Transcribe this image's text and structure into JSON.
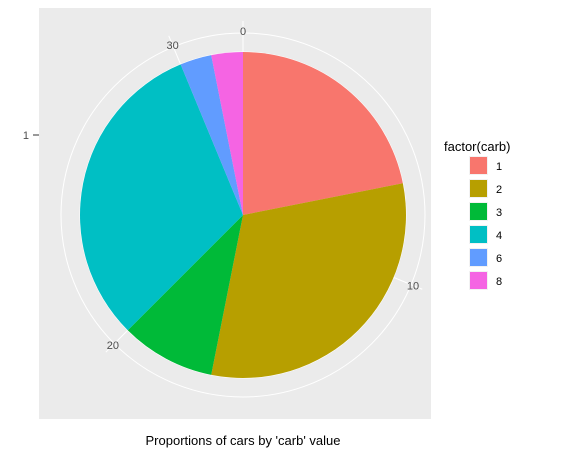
{
  "chart_data": {
    "type": "pie",
    "title": "",
    "xlabel": "Proportions of cars by 'carb' value",
    "y_tick_labels": [
      "1"
    ],
    "theta_ticks": [
      0,
      10,
      20,
      30
    ],
    "theta_range": [
      0,
      32
    ],
    "grid": true,
    "legend": {
      "title": "factor(carb)",
      "position": "right"
    },
    "categories": [
      "1",
      "2",
      "3",
      "4",
      "6",
      "8"
    ],
    "values": [
      7,
      10,
      3,
      10,
      1,
      1
    ],
    "colors": [
      "#F8766D",
      "#B79F00",
      "#00BA38",
      "#00BFC4",
      "#619CFF",
      "#F564E3"
    ],
    "panel_background": "#EBEBEB",
    "grid_color": "#FFFFFF"
  }
}
